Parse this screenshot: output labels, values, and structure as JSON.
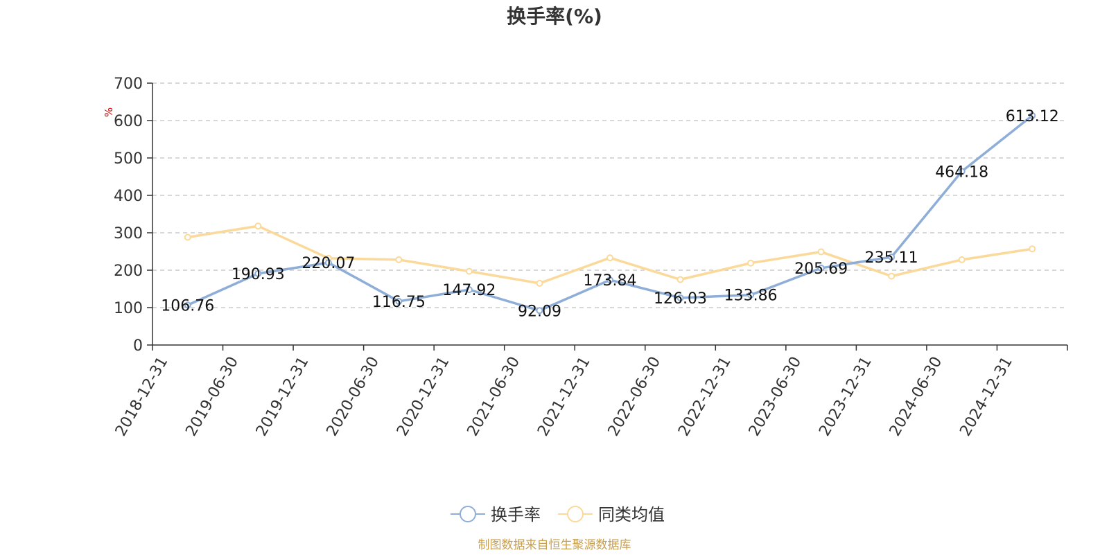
{
  "chart_data": {
    "type": "line",
    "title": "换手率(%)",
    "ylabel": "%",
    "xlabel": "",
    "ylim": [
      0,
      700
    ],
    "yticks": [
      0,
      100,
      200,
      300,
      400,
      500,
      600,
      700
    ],
    "categories": [
      "2018-12-31",
      "2019-06-30",
      "2019-12-31",
      "2020-06-30",
      "2020-12-31",
      "2021-06-30",
      "2021-12-31",
      "2022-06-30",
      "2022-12-31",
      "2023-06-30",
      "2023-12-31",
      "2024-06-30",
      "2024-12-31"
    ],
    "series": [
      {
        "name": "换手率",
        "color": "#8eaed8",
        "values": [
          106.76,
          190.93,
          220.07,
          116.75,
          147.92,
          92.09,
          173.84,
          126.03,
          133.86,
          205.69,
          235.11,
          464.18,
          613.12
        ],
        "labels": [
          "106.76",
          "190.93",
          "220.07",
          "116.75",
          "147.92",
          "92.09",
          "173.84",
          "126.03",
          "133.86",
          "205.69",
          "235.11",
          "464.18",
          "613.12"
        ]
      },
      {
        "name": "同类均值",
        "color": "#fbd99a",
        "values": [
          288,
          318,
          232,
          228,
          197,
          165,
          233,
          175,
          219,
          249,
          184,
          228,
          257
        ]
      }
    ],
    "grid": true,
    "legend_position": "bottom-center"
  },
  "source_note": "制图数据来自恒生聚源数据库"
}
